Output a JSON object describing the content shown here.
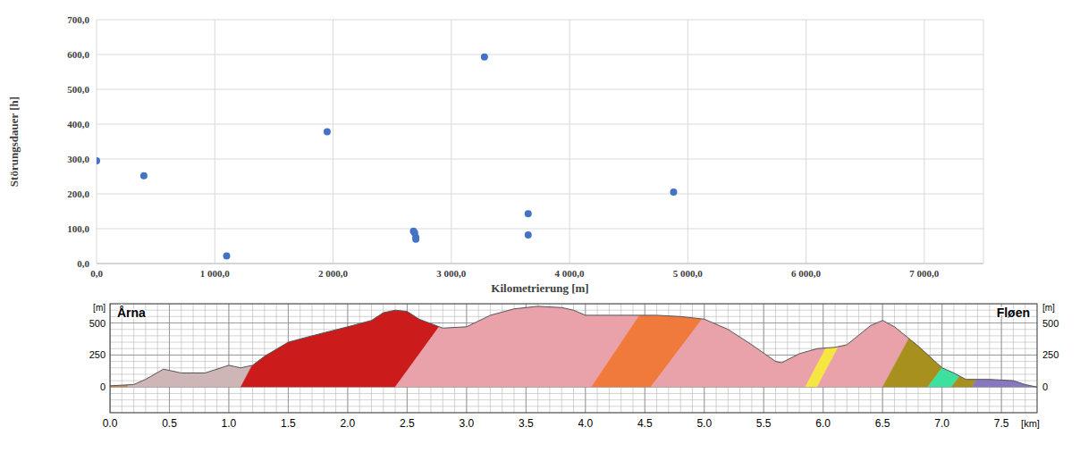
{
  "chart_data": [
    {
      "type": "scatter",
      "x_label": "Kilometrierung [m]",
      "y_label": "Störungsdauer [h]",
      "x": [
        0,
        400,
        1100,
        1950,
        2680,
        2690,
        2700,
        2700,
        3280,
        3650,
        3650,
        4880
      ],
      "values": [
        295,
        252,
        22,
        378,
        93,
        88,
        75,
        70,
        593,
        143,
        82,
        205
      ],
      "color": "#4472c4",
      "marker": "circle",
      "xlim": [
        0,
        7500
      ],
      "ylim": [
        0,
        700
      ],
      "xticks": [
        {
          "value": 0,
          "label": "0,0"
        },
        {
          "value": 1000,
          "label": "1 000,0"
        },
        {
          "value": 2000,
          "label": "2 000,0"
        },
        {
          "value": 3000,
          "label": "3 000,0"
        },
        {
          "value": 4000,
          "label": "4 000,0"
        },
        {
          "value": 5000,
          "label": "5 000,0"
        },
        {
          "value": 6000,
          "label": "6 000,0"
        },
        {
          "value": 7000,
          "label": "7 000,0"
        }
      ],
      "yticks": [
        {
          "value": 0,
          "label": "0,0"
        },
        {
          "value": 100,
          "label": "100,0"
        },
        {
          "value": 200,
          "label": "200,0"
        },
        {
          "value": 300,
          "label": "300,0"
        },
        {
          "value": 400,
          "label": "400,0"
        },
        {
          "value": 500,
          "label": "500,0"
        },
        {
          "value": 600,
          "label": "600,0"
        },
        {
          "value": 700,
          "label": "700,0"
        }
      ],
      "grid": true
    },
    {
      "type": "area",
      "x_label": "[km]",
      "y_label": "[m]",
      "y2_label": "[m]",
      "annotations": [
        "Årna",
        "Fløen"
      ],
      "x": [
        0,
        0.2,
        0.3,
        0.45,
        0.6,
        0.8,
        1.0,
        1.1,
        1.2,
        1.3,
        1.5,
        1.7,
        2.0,
        2.2,
        2.3,
        2.4,
        2.5,
        2.6,
        2.8,
        3.0,
        3.2,
        3.4,
        3.6,
        3.8,
        3.9,
        4.0,
        4.2,
        4.4,
        4.6,
        4.8,
        5.0,
        5.2,
        5.4,
        5.6,
        5.65,
        5.8,
        5.95,
        6.1,
        6.2,
        6.4,
        6.5,
        6.6,
        6.8,
        7.0,
        7.1,
        7.2,
        7.4,
        7.6,
        7.7,
        7.8
      ],
      "values": [
        10,
        20,
        60,
        140,
        110,
        110,
        170,
        150,
        170,
        240,
        350,
        400,
        470,
        520,
        580,
        600,
        590,
        530,
        460,
        470,
        560,
        610,
        630,
        620,
        600,
        560,
        560,
        560,
        560,
        550,
        530,
        450,
        330,
        200,
        190,
        260,
        300,
        310,
        330,
        480,
        520,
        470,
        320,
        150,
        110,
        60,
        60,
        50,
        20,
        0
      ],
      "color": "#555555",
      "xlim": [
        0,
        7.8
      ],
      "ylim": [
        -200,
        650
      ],
      "y2lim": [
        -200,
        650
      ],
      "xticks": [
        {
          "value": 0,
          "label": "0.0"
        },
        0.5,
        {
          "value": 1,
          "label": "1.0"
        },
        1.5,
        {
          "value": 2,
          "label": "2.0"
        },
        2.5,
        {
          "value": 3,
          "label": "3.0"
        },
        3.5,
        {
          "value": 4,
          "label": "4.0"
        },
        4.5,
        {
          "value": 5,
          "label": "5.0"
        },
        5.5,
        {
          "value": 6,
          "label": "6.0"
        },
        6.5,
        {
          "value": 7,
          "label": "7.0"
        },
        7.5
      ],
      "yticks": [
        0,
        250,
        500
      ],
      "y2ticks": [
        0,
        250,
        500
      ],
      "grid": true,
      "units": [
        {
          "color": "#c98850",
          "base": [
            0,
            0.15
          ],
          "top": [
            0,
            0.15
          ]
        },
        {
          "color": "#cfb6b6",
          "base": [
            0.15,
            1.1
          ],
          "top": [
            0.15,
            1.47
          ]
        },
        {
          "color": "#cc1b1b",
          "base": [
            1.1,
            2.4
          ],
          "top": [
            1.47,
            2.91
          ]
        },
        {
          "color": "#e9a1aa",
          "base": [
            2.4,
            4.05
          ],
          "top": [
            2.91,
            4.52
          ]
        },
        {
          "color": "#f07a3c",
          "base": [
            4.05,
            4.55
          ],
          "top": [
            4.52,
            5.08
          ]
        },
        {
          "color": "#e9a1aa",
          "base": [
            4.55,
            5.85
          ],
          "top": [
            5.08,
            6.22
          ]
        },
        {
          "color": "#f5e642",
          "base": [
            5.85,
            5.95
          ],
          "top": [
            6.22,
            6.32
          ]
        },
        {
          "color": "#e9a1aa",
          "base": [
            5.95,
            6.5
          ],
          "top": [
            6.32,
            6.88
          ]
        },
        {
          "color": "#a8901e",
          "base": [
            6.5,
            6.88
          ],
          "top": [
            6.88,
            7.4
          ]
        },
        {
          "color": "#3ee0a0",
          "base": [
            6.88,
            7.08
          ],
          "top": [
            7.4,
            7.6
          ]
        },
        {
          "color": "#a8901e",
          "base": [
            7.08,
            7.25
          ],
          "top": [
            7.6,
            7.7
          ]
        },
        {
          "color": "#8878c0",
          "base": [
            7.25,
            7.8
          ],
          "top": [
            7.7,
            7.8
          ]
        }
      ]
    }
  ]
}
